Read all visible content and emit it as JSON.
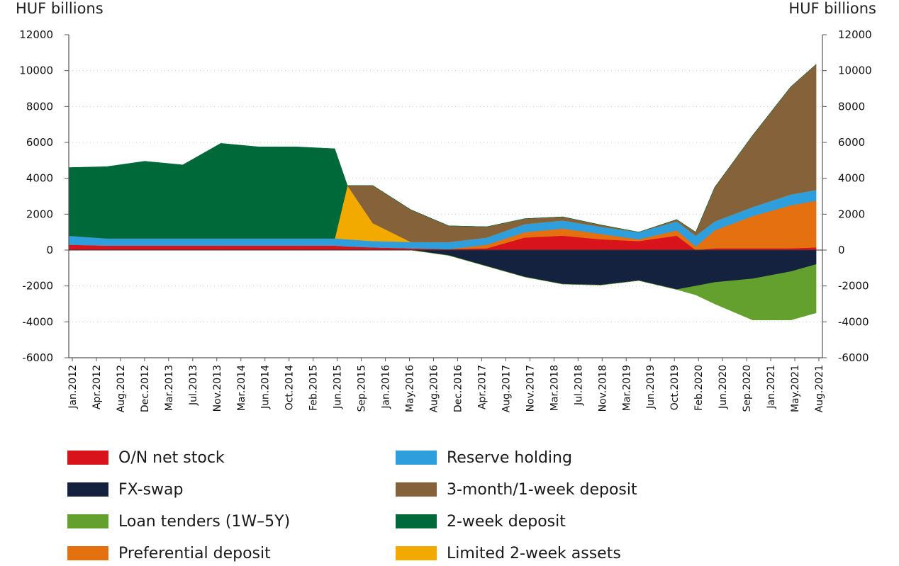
{
  "chart_data": {
    "type": "area",
    "title": "",
    "left_unit_label": "HUF billions",
    "right_unit_label": "HUF billions",
    "ylim": [
      -6000,
      12000
    ],
    "yticks": [
      12000,
      10000,
      8000,
      6000,
      4000,
      2000,
      0,
      -2000,
      -4000,
      -6000
    ],
    "grid": "horizontal-dotted",
    "x_tick_labels": [
      "Jan.2012",
      "Apr.2012",
      "Aug.2012",
      "Dec.2012",
      "Mar.2013",
      "Jul.2013",
      "Nov.2013",
      "Mar.2014",
      "Jun.2014",
      "Oct.2014",
      "Feb.2015",
      "Jun.2015",
      "Sep.2015",
      "Jan.2016",
      "May.2016",
      "Aug.2016",
      "Dec.2016",
      "Apr.2017",
      "Aug.2017",
      "Nov.2017",
      "Mar.2018",
      "Jul.2018",
      "Nov.2018",
      "Mar.2019",
      "Jun.2019",
      "Oct.2019",
      "Feb.2020",
      "Jun.2020",
      "Sep.2020",
      "Jan.2021",
      "May.2021",
      "Aug.2021"
    ],
    "x": [
      "2012-01",
      "2012-07",
      "2013-01",
      "2013-07",
      "2014-01",
      "2014-07",
      "2015-01",
      "2015-07",
      "2015-09",
      "2016-01",
      "2016-07",
      "2017-01",
      "2017-07",
      "2018-01",
      "2018-07",
      "2019-01",
      "2019-07",
      "2020-01",
      "2020-04",
      "2020-07",
      "2021-01",
      "2021-07",
      "2021-11"
    ],
    "legend_placement": "bottom",
    "series": [
      {
        "name": "O/N net stock",
        "color": "#d9131b",
        "side": "positive",
        "values": [
          300,
          250,
          250,
          250,
          250,
          250,
          250,
          250,
          200,
          150,
          100,
          50,
          100,
          700,
          800,
          600,
          500,
          800,
          0,
          100,
          100,
          100,
          150
        ]
      },
      {
        "name": "Preferential deposit",
        "color": "#e5700f",
        "side": "positive",
        "values": [
          0,
          0,
          0,
          0,
          0,
          0,
          0,
          0,
          0,
          0,
          0,
          0,
          200,
          300,
          400,
          300,
          100,
          300,
          200,
          1000,
          1800,
          2400,
          2600
        ]
      },
      {
        "name": "Reserve holding",
        "color": "#2e9fdc",
        "side": "positive",
        "values": [
          500,
          400,
          400,
          400,
          400,
          400,
          400,
          400,
          400,
          350,
          350,
          400,
          400,
          450,
          450,
          400,
          400,
          500,
          600,
          500,
          500,
          600,
          600
        ]
      },
      {
        "name": "Limited 2-week assets",
        "color": "#f2a900",
        "side": "positive",
        "values": [
          0,
          0,
          0,
          0,
          0,
          0,
          0,
          0,
          3000,
          1000,
          0,
          0,
          0,
          0,
          0,
          0,
          0,
          0,
          0,
          0,
          0,
          0,
          0
        ]
      },
      {
        "name": "3-month/1-week deposit",
        "color": "#86623a",
        "side": "positive",
        "values": [
          0,
          0,
          0,
          0,
          0,
          0,
          0,
          0,
          0,
          2100,
          1800,
          900,
          600,
          300,
          200,
          100,
          0,
          100,
          200,
          1900,
          4000,
          6000,
          7000
        ]
      },
      {
        "name": "2-week deposit",
        "color": "#00693a",
        "side": "positive",
        "values": [
          3800,
          4000,
          4300,
          4100,
          5300,
          5100,
          5100,
          5000,
          0,
          0,
          0,
          0,
          0,
          0,
          0,
          0,
          0,
          0,
          0,
          0,
          0,
          0,
          0
        ]
      },
      {
        "name": "FX-swap",
        "color": "#14213f",
        "side": "negative",
        "values": [
          0,
          0,
          0,
          0,
          0,
          0,
          0,
          0,
          0,
          0,
          0,
          -300,
          -900,
          -1500,
          -1900,
          -1950,
          -1700,
          -2200,
          -2000,
          -1800,
          -1600,
          -1200,
          -800
        ]
      },
      {
        "name": "Loan tenders (1W–5Y)",
        "color": "#64a02d",
        "side": "negative",
        "values": [
          0,
          0,
          0,
          0,
          0,
          0,
          0,
          0,
          0,
          0,
          0,
          0,
          0,
          0,
          0,
          0,
          0,
          0,
          -500,
          -1200,
          -2300,
          -2700,
          -2700
        ]
      }
    ]
  },
  "legend": [
    {
      "label": "O/N net stock",
      "color": "#d9131b"
    },
    {
      "label": "FX-swap",
      "color": "#14213f"
    },
    {
      "label": "Loan tenders (1W–5Y)",
      "color": "#64a02d"
    },
    {
      "label": "Preferential deposit",
      "color": "#e5700f"
    },
    {
      "label": "Reserve holding",
      "color": "#2e9fdc"
    },
    {
      "label": "3-month/1-week deposit",
      "color": "#86623a"
    },
    {
      "label": "2-week deposit",
      "color": "#00693a"
    },
    {
      "label": "Limited 2-week assets",
      "color": "#f2a900"
    }
  ]
}
